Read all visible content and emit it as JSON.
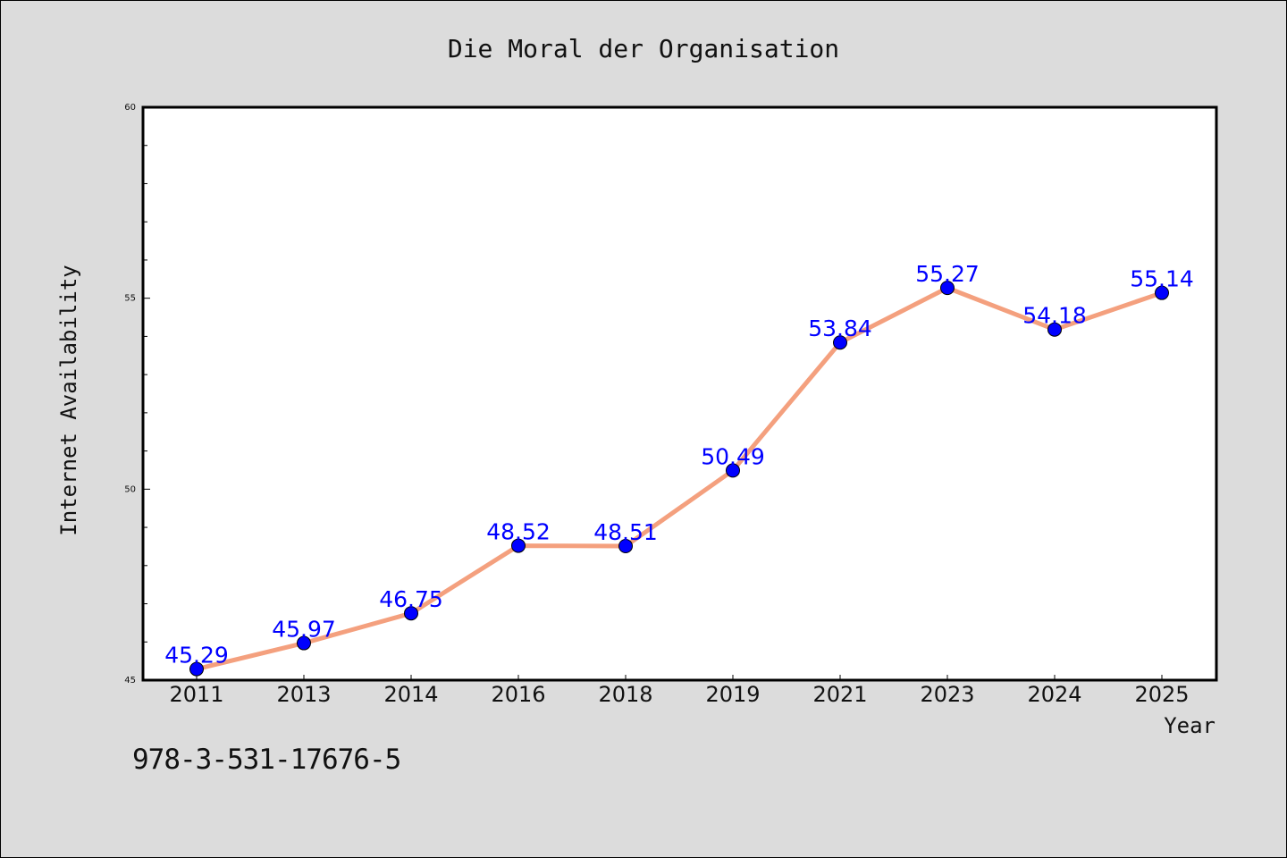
{
  "chart_data": {
    "type": "line",
    "title": "Die Moral der Organisation",
    "xlabel": "Year",
    "ylabel": "Internet Availability",
    "categories": [
      "2011",
      "2013",
      "2014",
      "2016",
      "2018",
      "2019",
      "2021",
      "2023",
      "2024",
      "2025"
    ],
    "series": [
      {
        "values": [
          45.29,
          45.97,
          46.75,
          48.52,
          48.51,
          50.49,
          53.84,
          55.27,
          54.18,
          55.14
        ],
        "labels": [
          "45.29",
          "45.97",
          "46.75",
          "48.52",
          "48.51",
          "50.49",
          "53.84",
          "55.27",
          "54.18",
          "55.14"
        ],
        "line_color": "#f4a07e",
        "marker_color": "#0000ff"
      }
    ],
    "ylim": [
      45,
      60
    ],
    "yticks": [
      "45",
      "50",
      "55",
      "60"
    ],
    "grid": false,
    "label_color": "#0000ff"
  },
  "footer": {
    "isbn": "978-3-531-17676-5"
  },
  "colors": {
    "background": "#dcdcdc",
    "plot_background": "#ffffff"
  }
}
